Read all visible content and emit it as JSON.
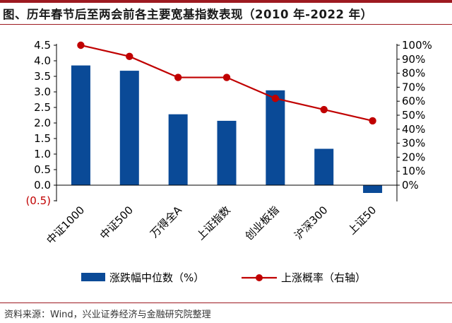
{
  "title": "图、历年春节后至两会前各主要宽基指数表现（2010 年-2022 年）",
  "source": "资料来源：Wind，兴业证券经济与金融研究院整理",
  "colors": {
    "bar": "#0a4a97",
    "line": "#c00000",
    "negative_tick": "#c00000",
    "rule": "#9d1a20"
  },
  "chart_data": {
    "type": "bar+line",
    "categories": [
      "中证1000",
      "中证500",
      "万得全A",
      "上证指数",
      "创业板指",
      "沪深300",
      "上证50"
    ],
    "series": [
      {
        "name": "涨跌幅中位数（%）",
        "type": "bar",
        "axis": "left",
        "values": [
          3.85,
          3.68,
          2.28,
          2.07,
          3.05,
          1.17,
          -0.25
        ]
      },
      {
        "name": "上涨概率（右轴）",
        "type": "line",
        "axis": "right",
        "values": [
          1.0,
          0.92,
          0.77,
          0.77,
          0.62,
          0.54,
          0.46
        ]
      }
    ],
    "y_left": {
      "min": -0.5,
      "max": 4.5,
      "step": 0.5,
      "tick_labels": [
        "(0.5)",
        "0.0",
        "0.5",
        "1.0",
        "1.5",
        "2.0",
        "2.5",
        "3.0",
        "3.5",
        "4.0",
        "4.5"
      ]
    },
    "y_right": {
      "min": -0.05,
      "max": 1.0,
      "tick_values": [
        0,
        0.1,
        0.2,
        0.3,
        0.4,
        0.5,
        0.6,
        0.7,
        0.8,
        0.9,
        1.0
      ],
      "tick_labels": [
        "0%",
        "10%",
        "20%",
        "30%",
        "40%",
        "50%",
        "60%",
        "70%",
        "80%",
        "90%",
        "100%"
      ]
    },
    "legend_position": "bottom",
    "grid": false
  }
}
